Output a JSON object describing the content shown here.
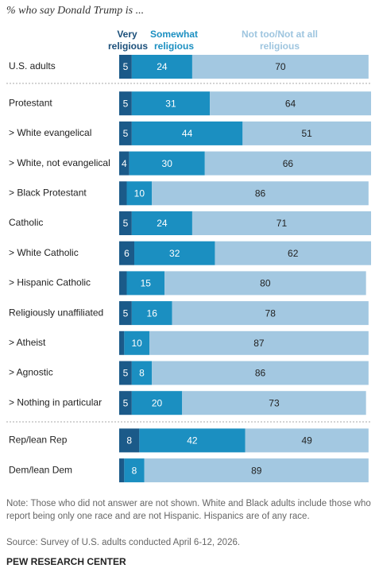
{
  "chart_data": {
    "type": "stacked-bar",
    "title": "% who say Donald Trump is ...",
    "categories": [
      "U.S. adults",
      "Protestant",
      "> White evangelical",
      "> White, not evangelical",
      "> Black Protestant",
      "Catholic",
      "> White Catholic",
      "> Hispanic Catholic",
      "Religiously unaffiliated",
      "> Atheist",
      "> Agnostic",
      "> Nothing in particular",
      "Rep/lean Rep",
      "Dem/lean Dem"
    ],
    "series": [
      {
        "name": "Very religious",
        "color": "#1b5a89",
        "values": [
          5,
          5,
          5,
          4,
          3,
          5,
          6,
          3,
          5,
          2,
          5,
          5,
          8,
          2
        ]
      },
      {
        "name": "Somewhat religious",
        "color": "#1b8fc1",
        "values": [
          24,
          31,
          44,
          30,
          10,
          24,
          32,
          15,
          16,
          10,
          8,
          20,
          42,
          8
        ]
      },
      {
        "name": "Not too/Not at all religious",
        "color": "#a3c8e1",
        "values": [
          70,
          64,
          51,
          66,
          86,
          71,
          62,
          80,
          78,
          87,
          86,
          73,
          49,
          89
        ]
      }
    ],
    "xlim": [
      0,
      100
    ],
    "note": "Note: Those who did not answer are not shown. White and Black adults include those who report being only one race and are not Hispanic. Hispanics are of any race.",
    "source": "Source: Survey of U.S. adults conducted April 6-12, 2026.",
    "credit": "PEW RESEARCH CENTER"
  }
}
